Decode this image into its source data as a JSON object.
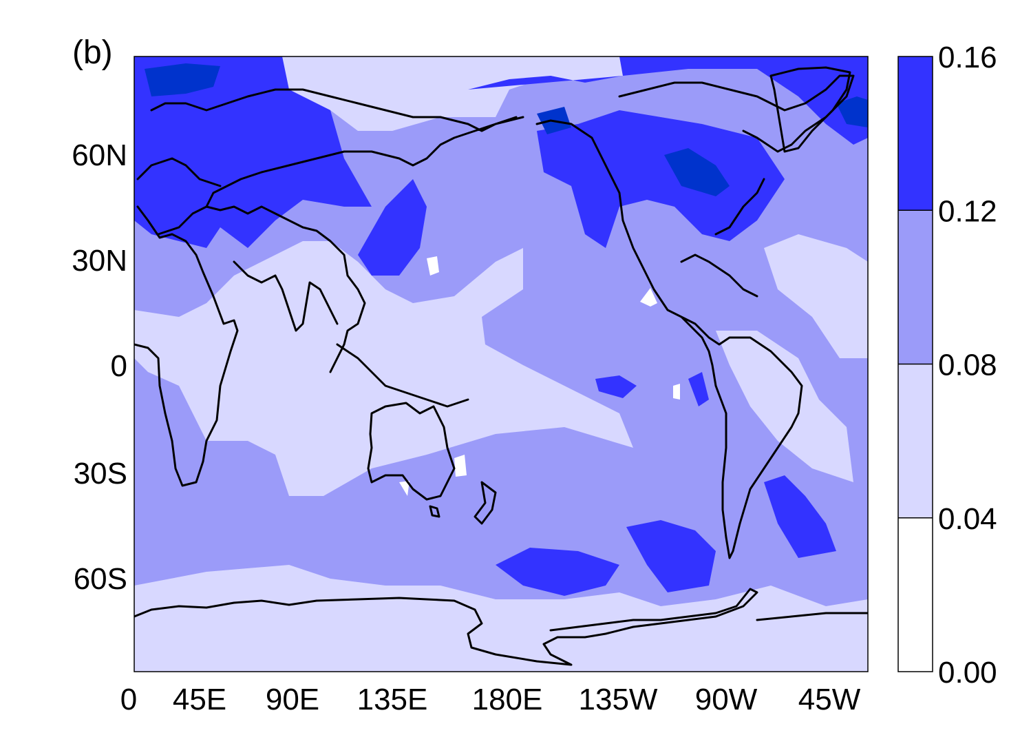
{
  "panel_label": "(b)",
  "colors": {
    "level_0_04": "#ffffff",
    "level_04_08": "#d8d8ff",
    "level_08_12": "#9b9bf9",
    "level_12_16": "#3333ff",
    "level_16_plus": "#0033cc",
    "coastline": "#000000"
  },
  "chart_data": {
    "type": "heatmap",
    "title": "",
    "projection": "equirectangular",
    "x_ticks": [
      "0",
      "45E",
      "90E",
      "135E",
      "180E",
      "135W",
      "90W",
      "45W"
    ],
    "y_ticks": [
      "60N",
      "30N",
      "0",
      "30S",
      "60S"
    ],
    "colorbar": {
      "levels": [
        "0.00",
        "0.04",
        "0.08",
        "0.12",
        "0.16"
      ],
      "level_values": [
        0.0,
        0.04,
        0.08,
        0.12,
        0.16
      ],
      "colors": [
        "#ffffff",
        "#d8d8ff",
        "#9b9bf9",
        "#3333ff",
        "#0033cc"
      ]
    },
    "overlay": "coastlines"
  }
}
